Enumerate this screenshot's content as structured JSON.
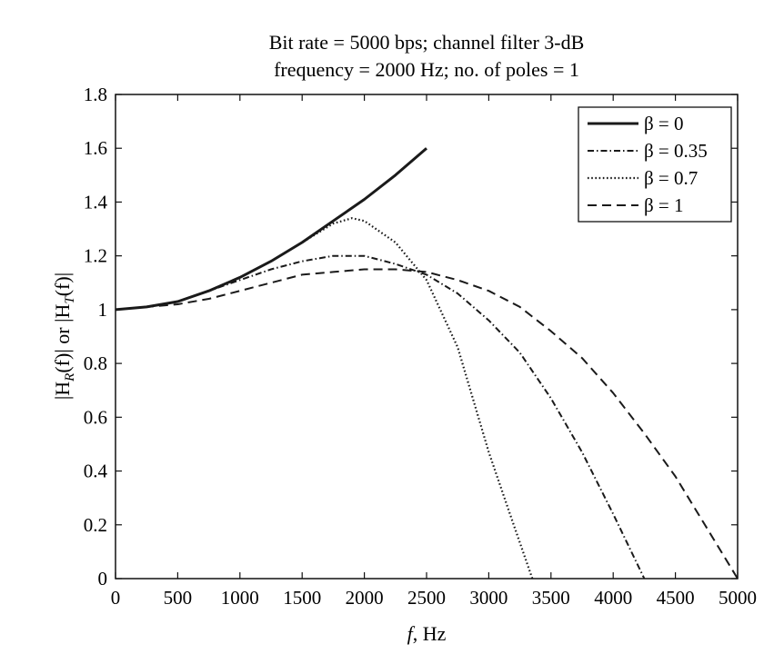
{
  "chart_data": {
    "type": "line",
    "title": [
      "Bit rate = 5000 bps; channel filter 3-dB",
      "frequency = 2000 Hz; no. of poles = 1"
    ],
    "xlabel": {
      "var": "f",
      "rest": ", Hz"
    },
    "ylabel": {
      "p1": "|H",
      "sub1": "R",
      "p2": "(f)| or |H",
      "sub2": "T",
      "p3": "(f)|"
    },
    "xlim": [
      0,
      5000
    ],
    "ylim": [
      0,
      1.8
    ],
    "xticks": [
      0,
      500,
      1000,
      1500,
      2000,
      2500,
      3000,
      3500,
      4000,
      4500,
      5000
    ],
    "yticks": [
      0,
      0.2,
      0.4,
      0.6,
      0.8,
      1,
      1.2,
      1.4,
      1.6,
      1.8
    ],
    "ytick_labels": [
      "0",
      "0.2",
      "0.4",
      "0.6",
      "0.8",
      "1",
      "1.2",
      "1.4",
      "1.6",
      "1.8"
    ],
    "grid": false,
    "legend_position": "top-right",
    "series": [
      {
        "name": "β = 0",
        "style": "solid",
        "x": [
          0,
          250,
          500,
          750,
          1000,
          1250,
          1500,
          1750,
          2000,
          2250,
          2500
        ],
        "y": [
          1.0,
          1.01,
          1.03,
          1.07,
          1.12,
          1.18,
          1.25,
          1.33,
          1.41,
          1.5,
          1.6
        ]
      },
      {
        "name": "β = 0.35",
        "style": "dashdot",
        "x": [
          0,
          250,
          500,
          750,
          1000,
          1250,
          1500,
          1750,
          2000,
          2250,
          2500,
          2750,
          3000,
          3250,
          3500,
          3750,
          4000,
          4250
        ],
        "y": [
          1.0,
          1.01,
          1.03,
          1.07,
          1.11,
          1.15,
          1.18,
          1.2,
          1.2,
          1.17,
          1.13,
          1.06,
          0.96,
          0.84,
          0.67,
          0.47,
          0.24,
          0.0
        ]
      },
      {
        "name": "β = 0.7",
        "style": "dotted",
        "x": [
          0,
          250,
          500,
          750,
          1000,
          1250,
          1500,
          1750,
          1900,
          2000,
          2250,
          2500,
          2750,
          3000,
          3200,
          3350
        ],
        "y": [
          1.0,
          1.01,
          1.03,
          1.07,
          1.12,
          1.18,
          1.25,
          1.32,
          1.34,
          1.33,
          1.25,
          1.11,
          0.86,
          0.47,
          0.2,
          0.0
        ]
      },
      {
        "name": "β = 1",
        "style": "dashed",
        "x": [
          0,
          250,
          500,
          750,
          1000,
          1250,
          1500,
          1750,
          2000,
          2250,
          2500,
          2750,
          3000,
          3250,
          3500,
          3750,
          4000,
          4250,
          4500,
          4750,
          5000
        ],
        "y": [
          1.0,
          1.01,
          1.02,
          1.04,
          1.07,
          1.1,
          1.13,
          1.14,
          1.15,
          1.15,
          1.14,
          1.11,
          1.07,
          1.01,
          0.92,
          0.82,
          0.69,
          0.54,
          0.38,
          0.19,
          0.0
        ]
      }
    ]
  }
}
